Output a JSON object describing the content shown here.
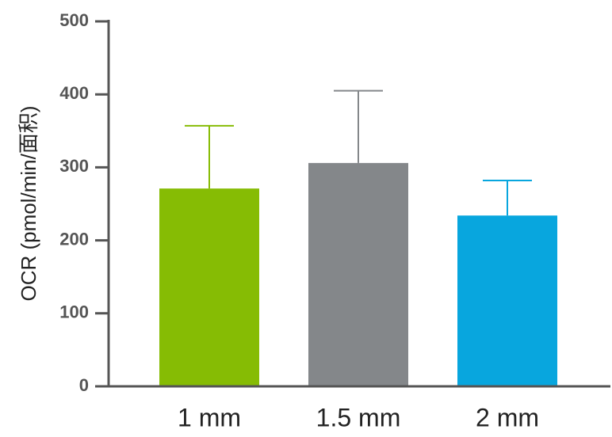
{
  "chart_data": {
    "type": "bar",
    "y_label": "OCR (pmol/min/面积)",
    "categories": [
      "1 mm",
      "1.5 mm",
      "2 mm"
    ],
    "values": [
      271,
      306,
      234
    ],
    "errors": [
      86,
      99,
      48
    ],
    "colors": [
      "#86bc04",
      "#84878a",
      "#08a6de"
    ],
    "ylim": [
      0,
      500
    ],
    "yticks": [
      0,
      100,
      200,
      300,
      400,
      500
    ]
  }
}
